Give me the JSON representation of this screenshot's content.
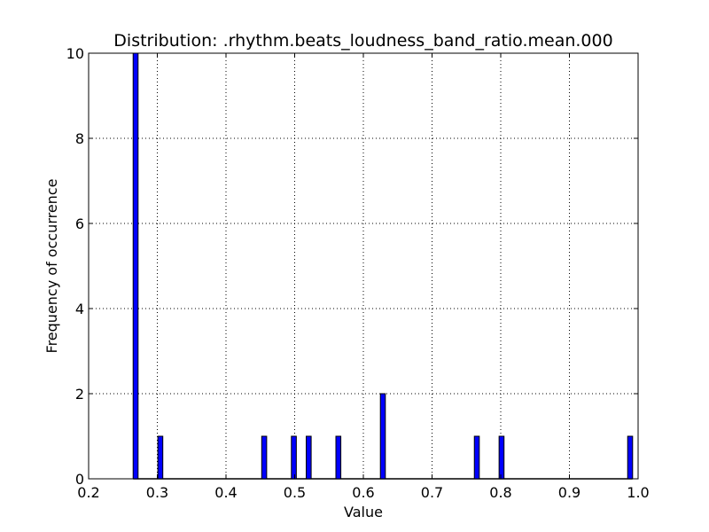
{
  "chart_data": {
    "type": "bar",
    "title": "Distribution: .rhythm.beats_loudness_band_ratio.mean.000",
    "xlabel": "Value",
    "ylabel": "Frequency of occurrence",
    "xlim": [
      0.2,
      1.0
    ],
    "ylim": [
      0,
      10
    ],
    "xticks": [
      0.2,
      0.3,
      0.4,
      0.5,
      0.6,
      0.7,
      0.8,
      0.9,
      1.0
    ],
    "xtick_labels": [
      "0.2",
      "0.3",
      "0.4",
      "0.5",
      "0.6",
      "0.7",
      "0.8",
      "0.9",
      "1.0"
    ],
    "yticks": [
      0,
      2,
      4,
      6,
      8,
      10
    ],
    "ytick_labels": [
      "0",
      "2",
      "4",
      "6",
      "8",
      "10"
    ],
    "grid": true,
    "bin_width": 0.0072,
    "bar_color": "#0000ff",
    "edge_color": "#000000",
    "bins": [
      {
        "x": 0.2648,
        "count": 10
      },
      {
        "x": 0.3008,
        "count": 1
      },
      {
        "x": 0.452,
        "count": 1
      },
      {
        "x": 0.4952,
        "count": 1
      },
      {
        "x": 0.5168,
        "count": 1
      },
      {
        "x": 0.56,
        "count": 1
      },
      {
        "x": 0.6248,
        "count": 2
      },
      {
        "x": 0.7616,
        "count": 1
      },
      {
        "x": 0.7976,
        "count": 1
      },
      {
        "x": 0.9848,
        "count": 1
      }
    ]
  }
}
